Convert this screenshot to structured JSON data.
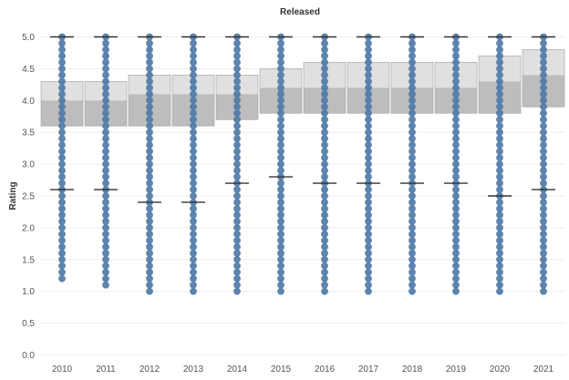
{
  "chart_data": {
    "type": "box",
    "title": "Released",
    "xlabel": "",
    "ylabel": "Rating",
    "ylim": [
      0,
      5.25
    ],
    "yticks": [
      "0.0",
      "0.5",
      "1.0",
      "1.5",
      "2.0",
      "2.5",
      "3.0",
      "3.5",
      "4.0",
      "4.5",
      "5.0"
    ],
    "categories": [
      "2010",
      "2011",
      "2012",
      "2013",
      "2014",
      "2015",
      "2016",
      "2017",
      "2018",
      "2019",
      "2020",
      "2021"
    ],
    "grid": true,
    "colors": {
      "dots": "#4e79a7",
      "box_lower": "#bdbdbd",
      "box_upper": "#e0e0e0",
      "whisker": "#333333"
    },
    "boxes": [
      {
        "year": "2010",
        "dot_min": 1.2,
        "dot_max": 5.0,
        "whisker_low": 2.6,
        "q1": 3.6,
        "median": 4.0,
        "q3": 4.3,
        "whisker_high": 5.0
      },
      {
        "year": "2011",
        "dot_min": 1.1,
        "dot_max": 5.0,
        "whisker_low": 2.6,
        "q1": 3.6,
        "median": 4.0,
        "q3": 4.3,
        "whisker_high": 5.0
      },
      {
        "year": "2012",
        "dot_min": 1.0,
        "dot_max": 5.0,
        "whisker_low": 2.4,
        "q1": 3.6,
        "median": 4.1,
        "q3": 4.4,
        "whisker_high": 5.0
      },
      {
        "year": "2013",
        "dot_min": 1.0,
        "dot_max": 5.0,
        "whisker_low": 2.4,
        "q1": 3.6,
        "median": 4.1,
        "q3": 4.4,
        "whisker_high": 5.0
      },
      {
        "year": "2014",
        "dot_min": 1.0,
        "dot_max": 5.0,
        "whisker_low": 2.7,
        "q1": 3.7,
        "median": 4.1,
        "q3": 4.4,
        "whisker_high": 5.0
      },
      {
        "year": "2015",
        "dot_min": 1.0,
        "dot_max": 5.0,
        "whisker_low": 2.8,
        "q1": 3.8,
        "median": 4.2,
        "q3": 4.5,
        "whisker_high": 5.0
      },
      {
        "year": "2016",
        "dot_min": 1.0,
        "dot_max": 5.0,
        "whisker_low": 2.7,
        "q1": 3.8,
        "median": 4.2,
        "q3": 4.6,
        "whisker_high": 5.0
      },
      {
        "year": "2017",
        "dot_min": 1.0,
        "dot_max": 5.0,
        "whisker_low": 2.7,
        "q1": 3.8,
        "median": 4.2,
        "q3": 4.6,
        "whisker_high": 5.0
      },
      {
        "year": "2018",
        "dot_min": 1.0,
        "dot_max": 5.0,
        "whisker_low": 2.7,
        "q1": 3.8,
        "median": 4.2,
        "q3": 4.6,
        "whisker_high": 5.0
      },
      {
        "year": "2019",
        "dot_min": 1.0,
        "dot_max": 5.0,
        "whisker_low": 2.7,
        "q1": 3.8,
        "median": 4.2,
        "q3": 4.6,
        "whisker_high": 5.0
      },
      {
        "year": "2020",
        "dot_min": 1.0,
        "dot_max": 5.0,
        "whisker_low": 2.5,
        "q1": 3.8,
        "median": 4.3,
        "q3": 4.7,
        "whisker_high": 5.0
      },
      {
        "year": "2021",
        "dot_min": 1.0,
        "dot_max": 5.0,
        "whisker_low": 2.6,
        "q1": 3.9,
        "median": 4.4,
        "q3": 4.8,
        "whisker_high": 5.0
      }
    ]
  }
}
